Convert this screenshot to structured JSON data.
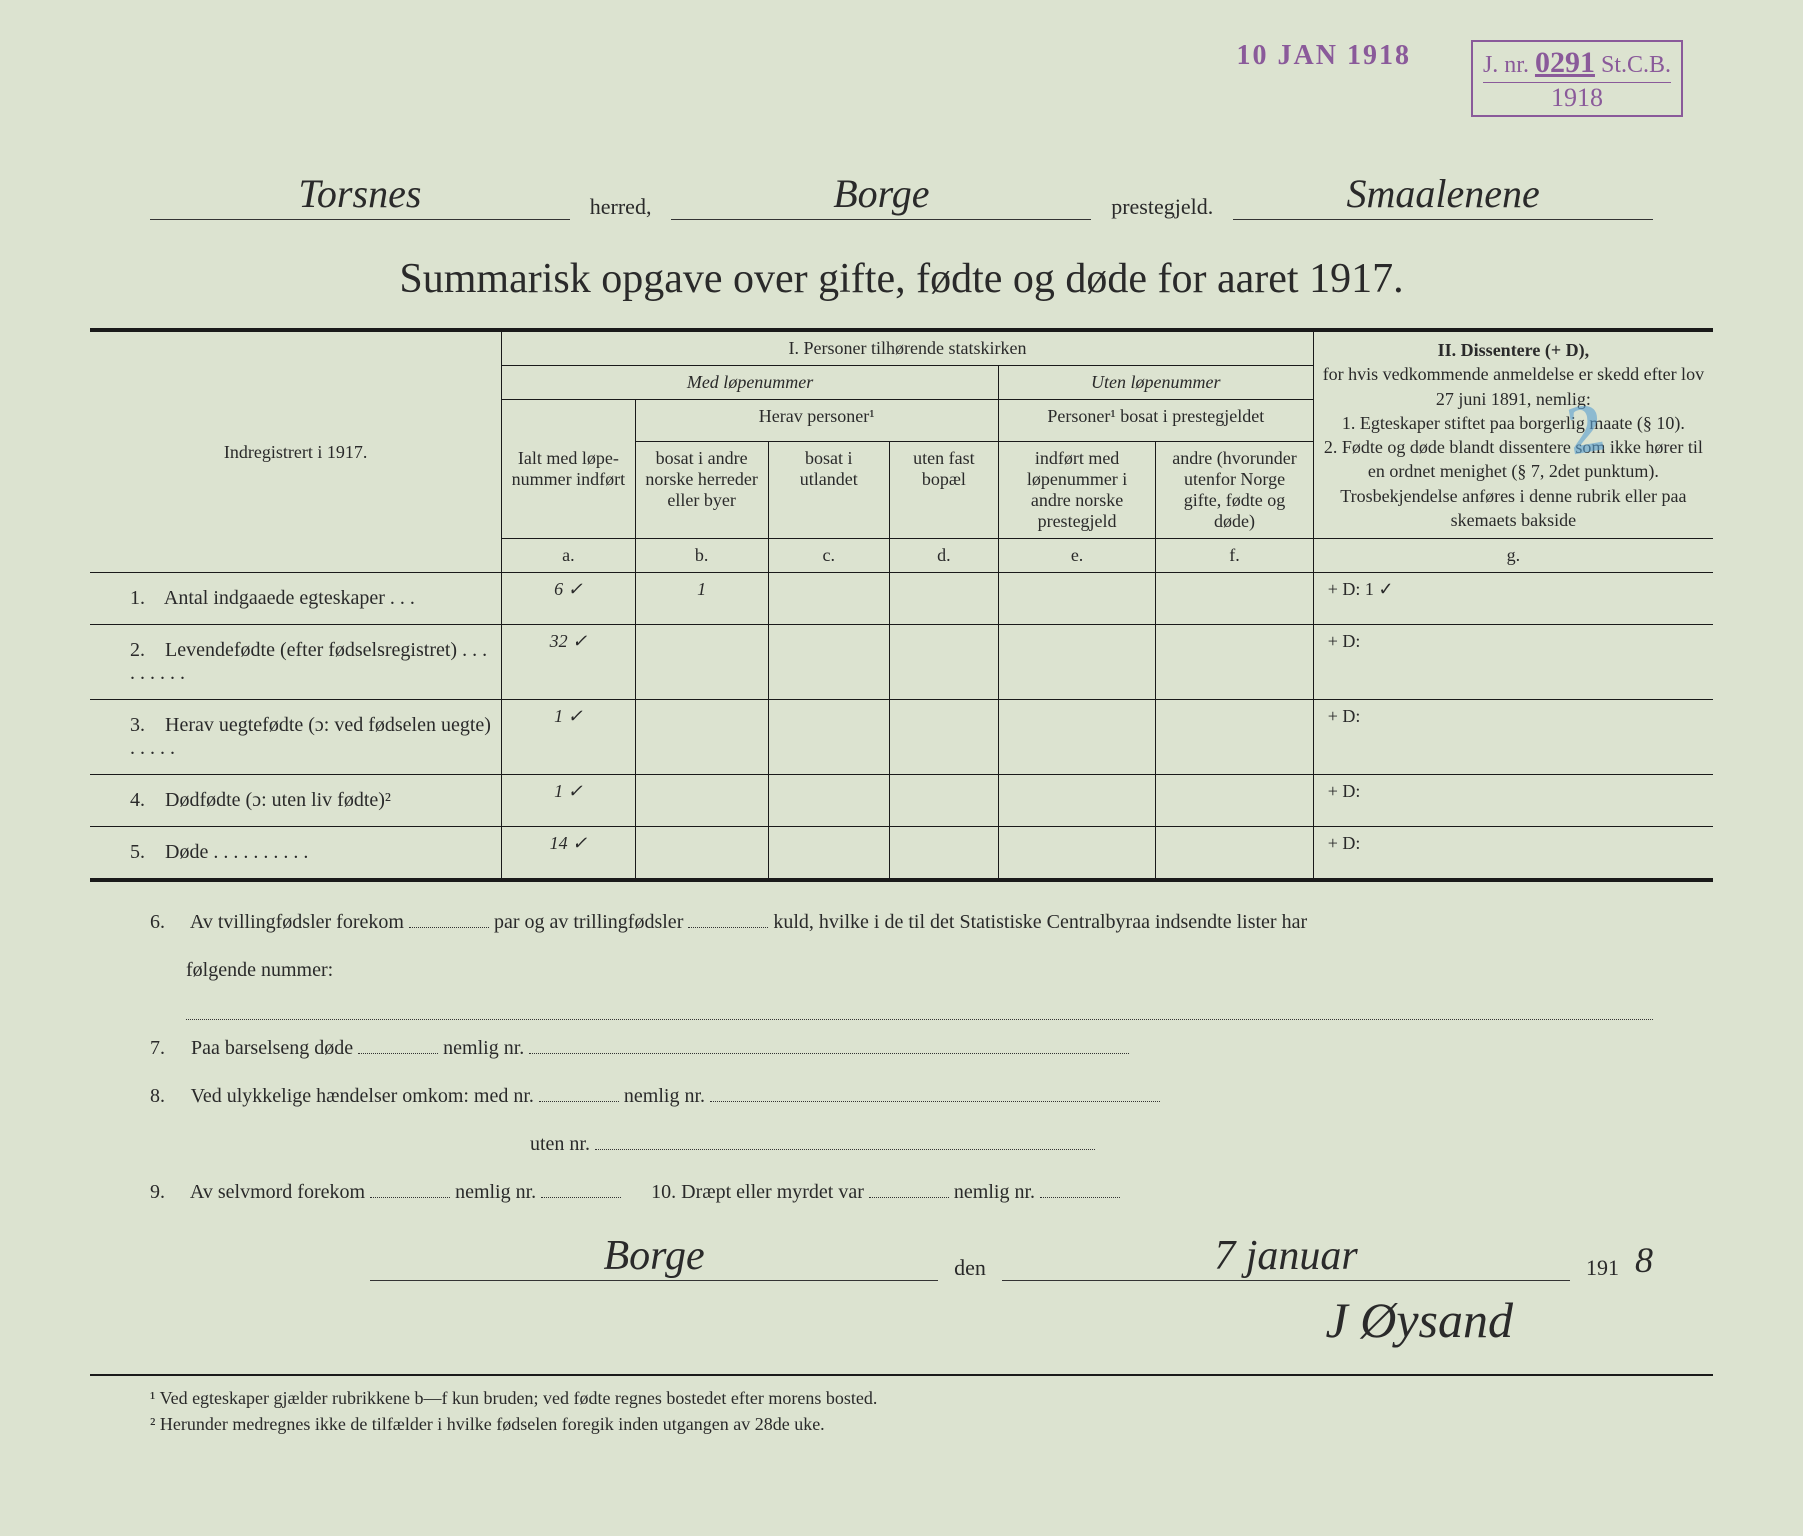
{
  "stamps": {
    "date": "10 JAN 1918",
    "jnr_prefix": "J. nr.",
    "jnr_number": "0291",
    "jnr_suffix": "St.C.B.",
    "jnr_year": "1918"
  },
  "header": {
    "herred_value": "Torsnes",
    "herred_label": "herred,",
    "prestegjeld_value": "Borge",
    "prestegjeld_label": "prestegjeld.",
    "amt_value": "Smaalenene"
  },
  "title": "Summarisk opgave over gifte, fødte og døde for aaret 1917.",
  "table_header": {
    "indregistrert": "Indregistrert i 1917.",
    "section1": "I.  Personer tilhørende statskirken",
    "section1_sub1": "Med løpenummer",
    "section1_sub2": "Uten løpenummer",
    "ialt": "Ialt med løpe-nummer indført",
    "herav": "Herav personer¹",
    "personer_bosat": "Personer¹ bosat i prestegjeldet",
    "col_b": "bosat i andre norske herreder eller byer",
    "col_c": "bosat i utlandet",
    "col_d": "uten fast bopæl",
    "col_e": "indført med løpenummer i andre norske prestegjeld",
    "col_f": "andre (hvorunder utenfor Norge gifte, fødte og døde)",
    "section2": "II.  Dissentere (+ D),",
    "section2_text": "for hvis vedkommende anmeldelse er skedd efter lov 27 juni 1891, nemlig:\n1. Egteskaper stiftet paa borgerlig maate (§ 10).\n2. Fødte og døde blandt dissentere som ikke hører til en ordnet menighet (§ 7, 2det punktum).\nTrosbekjendelse anføres i denne rubrik eller paa skemaets bakside",
    "letters": {
      "a": "a.",
      "b": "b.",
      "c": "c.",
      "d": "d.",
      "e": "e.",
      "f": "f.",
      "g": "g."
    }
  },
  "rows": [
    {
      "num": "1.",
      "label": "Antal indgaaede egteskaper . . .",
      "a": "6 ✓",
      "b": "1",
      "c": "",
      "d": "",
      "e": "",
      "f": "",
      "g": "+ D:   1 ✓"
    },
    {
      "num": "2.",
      "label": "Levendefødte (efter fødselsregistret) . . . . . . . . .",
      "a": "32 ✓",
      "b": "",
      "c": "",
      "d": "",
      "e": "",
      "f": "",
      "g": "+ D:"
    },
    {
      "num": "3.",
      "label": "Herav uegtefødte (ɔ: ved fødselen uegte) . . . . .",
      "a": "1 ✓",
      "b": "",
      "c": "",
      "d": "",
      "e": "",
      "f": "",
      "g": "+ D:"
    },
    {
      "num": "4.",
      "label": "Dødfødte (ɔ: uten liv fødte)²",
      "a": "1 ✓",
      "b": "",
      "c": "",
      "d": "",
      "e": "",
      "f": "",
      "g": "+ D:"
    },
    {
      "num": "5.",
      "label": "Døde . . . . . . . . . .",
      "a": "14 ✓",
      "b": "",
      "c": "",
      "d": "",
      "e": "",
      "f": "",
      "g": "+ D:"
    }
  ],
  "questions": {
    "q6": "Av tvillingfødsler forekom",
    "q6b": "par og av trillingfødsler",
    "q6c": "kuld, hvilke i de til det Statistiske Centralbyraa indsendte lister har",
    "q6d": "følgende nummer:",
    "q7": "Paa barselseng døde",
    "q7b": "nemlig nr.",
    "q8": "Ved ulykkelige hændelser omkom:  med nr.",
    "q8b": "nemlig nr.",
    "q8c": "uten nr.",
    "q9": "Av selvmord forekom",
    "q9b": "nemlig nr.",
    "q10": "10.  Dræpt eller myrdet var",
    "q10b": "nemlig nr."
  },
  "signature": {
    "place": "Borge",
    "den": "den",
    "date": "7 januar",
    "year_prefix": "191",
    "year_digit": "8",
    "name": "J Øysand"
  },
  "footnotes": {
    "f1": "¹ Ved egteskaper gjælder rubrikkene b—f kun bruden; ved fødte regnes bostedet efter morens bosted.",
    "f2": "² Herunder medregnes ikke de tilfælder i hvilke fødselen foregik inden utgangen av 28de uke."
  },
  "blue_mark": "2",
  "colors": {
    "background": "#dce3d0",
    "text": "#2a2a2a",
    "stamp": "#8a5a9a",
    "blue": "#5aa0d0"
  }
}
